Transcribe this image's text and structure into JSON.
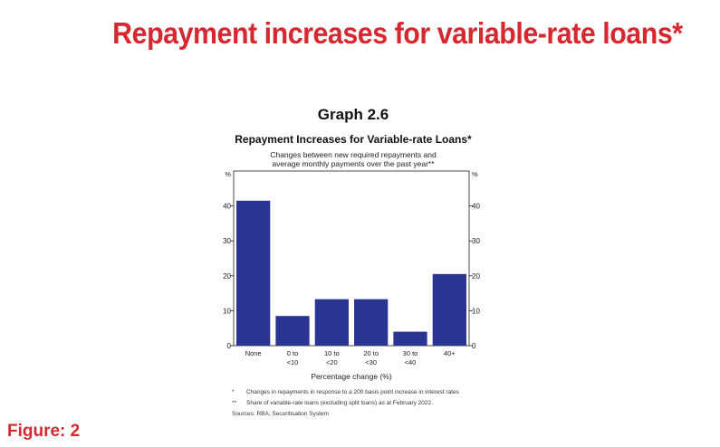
{
  "headline": "Repayment increases for variable-rate loans*",
  "figure_label": "Figure: 2",
  "graph": {
    "number": "Graph 2.6",
    "title": "Repayment Increases for Variable-rate Loans*",
    "subtitle_line1": "Changes between new required repayments and",
    "subtitle_line2": "average monthly payments over the past year**",
    "footnote1_mark": "*",
    "footnote1_text": "Changes in repayments in response to a 200 basis point increase in interest rates",
    "footnote2_mark": "**",
    "footnote2_text": "Share of variable-rate loans (excluding split loans) as at February 2022.",
    "sources": "Sources: RBA; Securitisation System"
  },
  "chart_data": {
    "type": "bar",
    "categories": [
      [
        "None"
      ],
      [
        "0 to",
        "<10"
      ],
      [
        "10 to",
        "<20"
      ],
      [
        "20 to",
        "<30"
      ],
      [
        "30 to",
        "<40"
      ],
      [
        "40+"
      ]
    ],
    "values": [
      41.5,
      8.5,
      13.3,
      13.3,
      4,
      20.5
    ],
    "xlabel": "Percentage change (%)",
    "ylabel_left": "%",
    "ylabel_right": "%",
    "ylim": [
      0,
      50
    ],
    "yticks": [
      0,
      10,
      20,
      30,
      40
    ],
    "bar_color": "#2a3591",
    "grid": false
  }
}
